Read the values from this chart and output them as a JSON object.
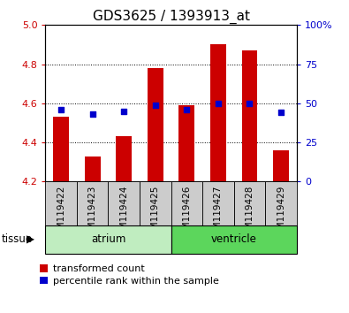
{
  "title": "GDS3625 / 1393913_at",
  "samples": [
    "GSM119422",
    "GSM119423",
    "GSM119424",
    "GSM119425",
    "GSM119426",
    "GSM119427",
    "GSM119428",
    "GSM119429"
  ],
  "red_values": [
    4.53,
    4.33,
    4.43,
    4.78,
    4.59,
    4.9,
    4.87,
    4.36
  ],
  "blue_values": [
    46,
    43,
    45,
    49,
    46,
    50,
    50,
    44
  ],
  "ylim_left": [
    4.2,
    5.0
  ],
  "ylim_right": [
    0,
    100
  ],
  "yticks_left": [
    4.2,
    4.4,
    4.6,
    4.8,
    5.0
  ],
  "yticks_right": [
    0,
    25,
    50,
    75,
    100
  ],
  "ytick_labels_right": [
    "0",
    "25",
    "50",
    "75",
    "100%"
  ],
  "tissue_groups": [
    {
      "label": "atrium",
      "samples": [
        0,
        1,
        2,
        3
      ],
      "color": "#c0edc0"
    },
    {
      "label": "ventricle",
      "samples": [
        4,
        5,
        6,
        7
      ],
      "color": "#5cd65c"
    }
  ],
  "bar_color": "#cc0000",
  "dot_color": "#0000cc",
  "bar_width": 0.5,
  "dot_size": 22,
  "grid_color": "black",
  "background_plot": "white",
  "background_xtick": "#cccccc",
  "legend_red_label": "transformed count",
  "legend_blue_label": "percentile rank within the sample",
  "tissue_label": "tissue",
  "left_tick_color": "#cc0000",
  "right_tick_color": "#0000cc",
  "title_fontsize": 11,
  "tick_fontsize": 8,
  "label_fontsize": 7.5,
  "legend_fontsize": 8,
  "tissue_fontsize": 8.5
}
